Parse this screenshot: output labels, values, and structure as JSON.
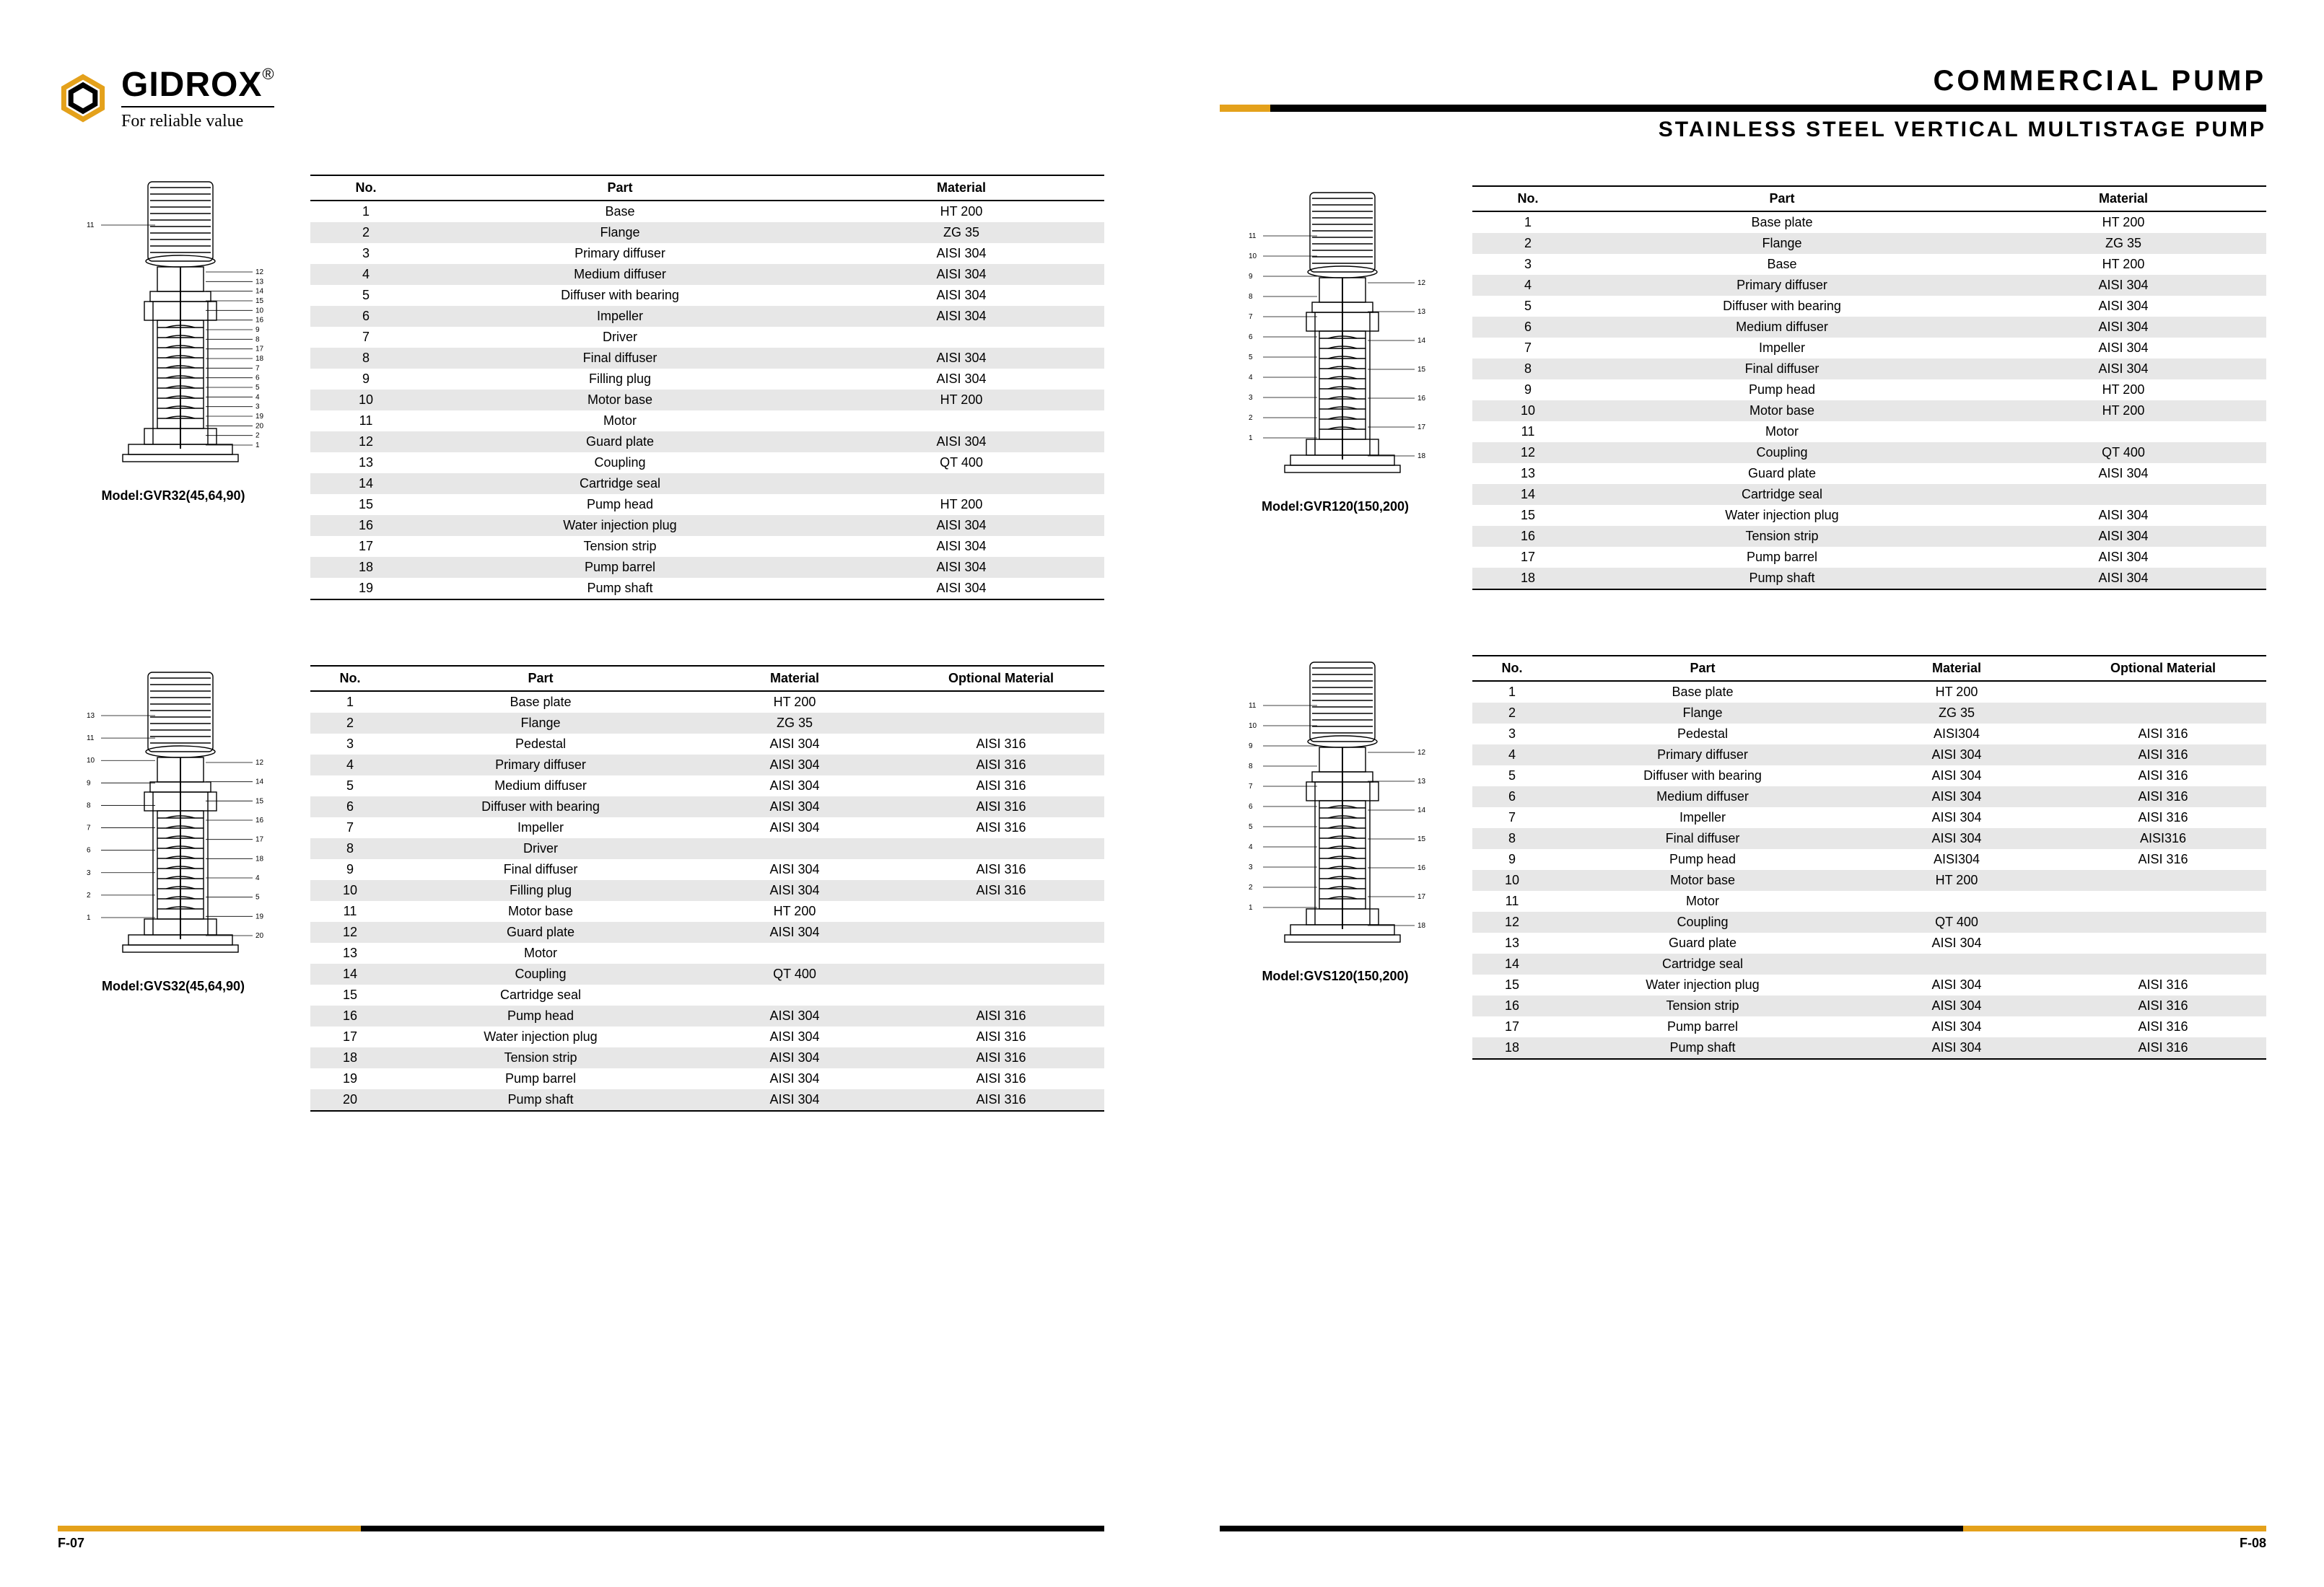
{
  "colors": {
    "accent": "#e4a11b",
    "shade": "#e7e7e7",
    "text": "#000000",
    "bg": "#ffffff"
  },
  "brand": {
    "name": "GIDROX",
    "reg": "®",
    "tagline": "For reliable value"
  },
  "header": {
    "line1": "COMMERCIAL  PUMP",
    "line2": "STAINLESS STEEL VERTICAL  MULTISTAGE   PUMP"
  },
  "labels": {
    "no": "No.",
    "part": "Part",
    "material": "Material",
    "optional": "Optional Material",
    "model_prefix": "Model:"
  },
  "pages": {
    "left": "F-07",
    "right": "F-08"
  },
  "sections": [
    {
      "model": "GVR32(45,64,90)",
      "cols": [
        "no",
        "part",
        "material"
      ],
      "rows": [
        [
          "1",
          "Base",
          "HT 200"
        ],
        [
          "2",
          "Flange",
          "ZG 35"
        ],
        [
          "3",
          "Primary diffuser",
          "AISI 304"
        ],
        [
          "4",
          "Medium diffuser",
          "AISI 304"
        ],
        [
          "5",
          "Diffuser with bearing",
          "AISI 304"
        ],
        [
          "6",
          "Impeller",
          "AISI 304"
        ],
        [
          "7",
          "Driver",
          ""
        ],
        [
          "8",
          "Final diffuser",
          "AISI 304"
        ],
        [
          "9",
          "Filling plug",
          "AISI 304"
        ],
        [
          "10",
          "Motor base",
          "HT 200"
        ],
        [
          "11",
          "Motor",
          ""
        ],
        [
          "12",
          "Guard plate",
          "AISI 304"
        ],
        [
          "13",
          "Coupling",
          "QT 400"
        ],
        [
          "14",
          "Cartridge seal",
          ""
        ],
        [
          "15",
          "Pump head",
          "HT 200"
        ],
        [
          "16",
          "Water injection plug",
          "AISI 304"
        ],
        [
          "17",
          "Tension strip",
          "AISI 304"
        ],
        [
          "18",
          "Pump barrel",
          "AISI 304"
        ],
        [
          "19",
          "Pump shaft",
          "AISI 304"
        ]
      ]
    },
    {
      "model": "GVS32(45,64,90)",
      "cols": [
        "no",
        "part",
        "material",
        "optional"
      ],
      "rows": [
        [
          "1",
          "Base plate",
          "HT 200",
          ""
        ],
        [
          "2",
          "Flange",
          "ZG 35",
          ""
        ],
        [
          "3",
          "Pedestal",
          "AISI 304",
          "AISI 316"
        ],
        [
          "4",
          "Primary diffuser",
          "AISI 304",
          "AISI 316"
        ],
        [
          "5",
          "Medium diffuser",
          "AISI 304",
          "AISI 316"
        ],
        [
          "6",
          "Diffuser with bearing",
          "AISI 304",
          "AISI 316"
        ],
        [
          "7",
          "Impeller",
          "AISI 304",
          "AISI 316"
        ],
        [
          "8",
          "Driver",
          "",
          ""
        ],
        [
          "9",
          "Final diffuser",
          "AISI 304",
          "AISI 316"
        ],
        [
          "10",
          "Filling plug",
          "AISI 304",
          "AISI 316"
        ],
        [
          "11",
          "Motor base",
          "HT 200",
          ""
        ],
        [
          "12",
          "Guard plate",
          "AISI 304",
          ""
        ],
        [
          "13",
          "Motor",
          "",
          ""
        ],
        [
          "14",
          "Coupling",
          "QT 400",
          ""
        ],
        [
          "15",
          "Cartridge seal",
          "",
          ""
        ],
        [
          "16",
          "Pump head",
          "AISI 304",
          "AISI 316"
        ],
        [
          "17",
          "Water injection plug",
          "AISI 304",
          "AISI 316"
        ],
        [
          "18",
          "Tension strip",
          "AISI 304",
          "AISI 316"
        ],
        [
          "19",
          "Pump barrel",
          "AISI 304",
          "AISI 316"
        ],
        [
          "20",
          "Pump shaft",
          "AISI 304",
          "AISI 316"
        ]
      ]
    },
    {
      "model": "GVR120(150,200)",
      "cols": [
        "no",
        "part",
        "material"
      ],
      "rows": [
        [
          "1",
          "Base plate",
          "HT 200"
        ],
        [
          "2",
          "Flange",
          "ZG 35"
        ],
        [
          "3",
          "Base",
          "HT 200"
        ],
        [
          "4",
          "Primary diffuser",
          "AISI 304"
        ],
        [
          "5",
          "Diffuser with bearing",
          "AISI 304"
        ],
        [
          "6",
          "Medium diffuser",
          "AISI 304"
        ],
        [
          "7",
          "Impeller",
          "AISI 304"
        ],
        [
          "8",
          "Final diffuser",
          "AISI 304"
        ],
        [
          "9",
          "Pump head",
          "HT 200"
        ],
        [
          "10",
          "Motor base",
          "HT 200"
        ],
        [
          "11",
          "Motor",
          ""
        ],
        [
          "12",
          "Coupling",
          "QT 400"
        ],
        [
          "13",
          "Guard plate",
          "AISI 304"
        ],
        [
          "14",
          "Cartridge seal",
          ""
        ],
        [
          "15",
          "Water injection plug",
          "AISI 304"
        ],
        [
          "16",
          "Tension strip",
          "AISI 304"
        ],
        [
          "17",
          "Pump barrel",
          "AISI 304"
        ],
        [
          "18",
          "Pump shaft",
          "AISI 304"
        ]
      ]
    },
    {
      "model": "GVS120(150,200)",
      "cols": [
        "no",
        "part",
        "material",
        "optional"
      ],
      "rows": [
        [
          "1",
          "Base plate",
          "HT 200",
          ""
        ],
        [
          "2",
          "Flange",
          "ZG 35",
          ""
        ],
        [
          "3",
          "Pedestal",
          "AISI304",
          "AISI 316"
        ],
        [
          "4",
          "Primary diffuser",
          "AISI 304",
          "AISI 316"
        ],
        [
          "5",
          "Diffuser with bearing",
          "AISI 304",
          "AISI 316"
        ],
        [
          "6",
          "Medium diffuser",
          "AISI 304",
          "AISI 316"
        ],
        [
          "7",
          "Impeller",
          "AISI 304",
          "AISI 316"
        ],
        [
          "8",
          "Final diffuser",
          "AISI 304",
          "AISI316"
        ],
        [
          "9",
          "Pump head",
          "AISI304",
          "AISI 316"
        ],
        [
          "10",
          "Motor base",
          "HT 200",
          ""
        ],
        [
          "11",
          "Motor",
          "",
          ""
        ],
        [
          "12",
          "Coupling",
          "QT 400",
          ""
        ],
        [
          "13",
          "Guard plate",
          "AISI 304",
          ""
        ],
        [
          "14",
          "Cartridge seal",
          "",
          ""
        ],
        [
          "15",
          "Water injection plug",
          "AISI 304",
          "AISI 316"
        ],
        [
          "16",
          "Tension strip",
          "AISI 304",
          "AISI 316"
        ],
        [
          "17",
          "Pump barrel",
          "AISI 304",
          "AISI 316"
        ],
        [
          "18",
          "Pump shaft",
          "AISI 304",
          "AISI 316"
        ]
      ]
    }
  ],
  "diagram_callouts": {
    "a": {
      "left": [
        "11"
      ],
      "right": [
        "12",
        "13",
        "14",
        "15",
        "10",
        "16",
        "9",
        "8",
        "17",
        "18",
        "7",
        "6",
        "5",
        "4",
        "3",
        "19",
        "20",
        "2",
        "1"
      ]
    },
    "b": {
      "left": [
        "13",
        "11",
        "10",
        "9",
        "8",
        "7",
        "6",
        "3",
        "2",
        "1"
      ],
      "right": [
        "12",
        "14",
        "15",
        "16",
        "17",
        "18",
        "4",
        "5",
        "19",
        "20"
      ]
    },
    "c": {
      "left": [
        "11",
        "10",
        "9",
        "8",
        "7",
        "6",
        "5",
        "4",
        "3",
        "2",
        "1"
      ],
      "right": [
        "12",
        "13",
        "14",
        "15",
        "16",
        "17",
        "18"
      ]
    },
    "d": {
      "left": [
        "11",
        "10",
        "9",
        "8",
        "7",
        "6",
        "5",
        "4",
        "3",
        "2",
        "1"
      ],
      "right": [
        "12",
        "13",
        "14",
        "15",
        "16",
        "17",
        "18"
      ]
    }
  }
}
